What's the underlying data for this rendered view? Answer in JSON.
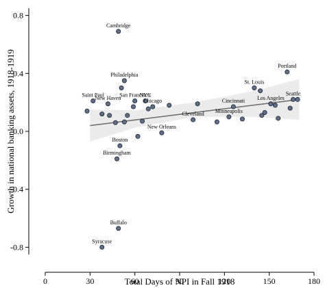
{
  "chart_data": {
    "type": "scatter",
    "title": "",
    "xlabel": "Total Days of NPI in Fall 1918",
    "ylabel": "Growth in national banking assets, 1918-1919",
    "xlim": [
      0,
      180
    ],
    "ylim": [
      -0.85,
      0.85
    ],
    "xticks": [
      0,
      30,
      60,
      90,
      120,
      150,
      180
    ],
    "xtick_labels": [
      "0",
      "30",
      "60",
      "90",
      "120",
      "150",
      "180"
    ],
    "yticks": [
      -0.8,
      -0.4,
      0.0,
      0.4,
      0.8
    ],
    "ytick_labels": [
      "-0.8",
      "-0.4",
      "0.0",
      "0.4",
      "0.8"
    ],
    "grid": false,
    "colors": {
      "point": "#5f6f8a",
      "fit_line": "#707070",
      "ci_band": "#ebebeb"
    },
    "fit_line": {
      "x": [
        30,
        170
      ],
      "y": [
        0.04,
        0.22
      ]
    },
    "confidence_band": {
      "x": [
        30,
        60,
        100,
        140,
        170
      ],
      "lower": [
        -0.07,
        0.025,
        0.1,
        0.1,
        0.08
      ],
      "upper": [
        0.15,
        0.145,
        0.2,
        0.28,
        0.36
      ]
    },
    "points": [
      {
        "x": 49,
        "y": 0.69,
        "label": "Cambridge"
      },
      {
        "x": 162,
        "y": 0.41,
        "label": "Portland"
      },
      {
        "x": 53,
        "y": 0.35,
        "label": "Philadelphia"
      },
      {
        "x": 51,
        "y": 0.3,
        "label": ""
      },
      {
        "x": 140,
        "y": 0.3,
        "label": "St. Louis"
      },
      {
        "x": 144,
        "y": 0.28,
        "label": ""
      },
      {
        "x": 60,
        "y": 0.21,
        "label": "San Francisco"
      },
      {
        "x": 67,
        "y": 0.21,
        "label": "NYC"
      },
      {
        "x": 72,
        "y": 0.17,
        "label": "Chicago"
      },
      {
        "x": 32,
        "y": 0.21,
        "label": "Saint Paul"
      },
      {
        "x": 28,
        "y": 0.14,
        "label": ""
      },
      {
        "x": 42,
        "y": 0.19,
        "label": "New Haven"
      },
      {
        "x": 38,
        "y": 0.12,
        "label": ""
      },
      {
        "x": 43,
        "y": 0.11,
        "label": ""
      },
      {
        "x": 59,
        "y": 0.17,
        "label": ""
      },
      {
        "x": 69,
        "y": 0.155,
        "label": ""
      },
      {
        "x": 83,
        "y": 0.18,
        "label": ""
      },
      {
        "x": 55,
        "y": 0.11,
        "label": ""
      },
      {
        "x": 47,
        "y": 0.06,
        "label": ""
      },
      {
        "x": 53,
        "y": 0.065,
        "label": ""
      },
      {
        "x": 65,
        "y": 0.07,
        "label": ""
      },
      {
        "x": 102,
        "y": 0.19,
        "label": ""
      },
      {
        "x": 99,
        "y": 0.08,
        "label": "Cleveland"
      },
      {
        "x": 115,
        "y": 0.065,
        "label": ""
      },
      {
        "x": 126,
        "y": 0.17,
        "label": "Cincinnati"
      },
      {
        "x": 123,
        "y": 0.1,
        "label": "Minneapolis"
      },
      {
        "x": 132,
        "y": 0.085,
        "label": ""
      },
      {
        "x": 147,
        "y": 0.13,
        "label": ""
      },
      {
        "x": 145,
        "y": 0.11,
        "label": ""
      },
      {
        "x": 151,
        "y": 0.19,
        "label": "Los Angeles"
      },
      {
        "x": 154,
        "y": 0.18,
        "label": ""
      },
      {
        "x": 156,
        "y": 0.09,
        "label": ""
      },
      {
        "x": 164,
        "y": 0.16,
        "label": ""
      },
      {
        "x": 166,
        "y": 0.22,
        "label": "Seattle"
      },
      {
        "x": 169,
        "y": 0.22,
        "label": ""
      },
      {
        "x": 78,
        "y": -0.01,
        "label": "New Orleans"
      },
      {
        "x": 62,
        "y": -0.035,
        "label": ""
      },
      {
        "x": 50,
        "y": -0.1,
        "label": "Boston"
      },
      {
        "x": 48,
        "y": -0.19,
        "label": "Birmingham"
      },
      {
        "x": 49,
        "y": -0.67,
        "label": "Buffalo"
      },
      {
        "x": 38,
        "y": -0.8,
        "label": "Syracuse"
      }
    ]
  }
}
